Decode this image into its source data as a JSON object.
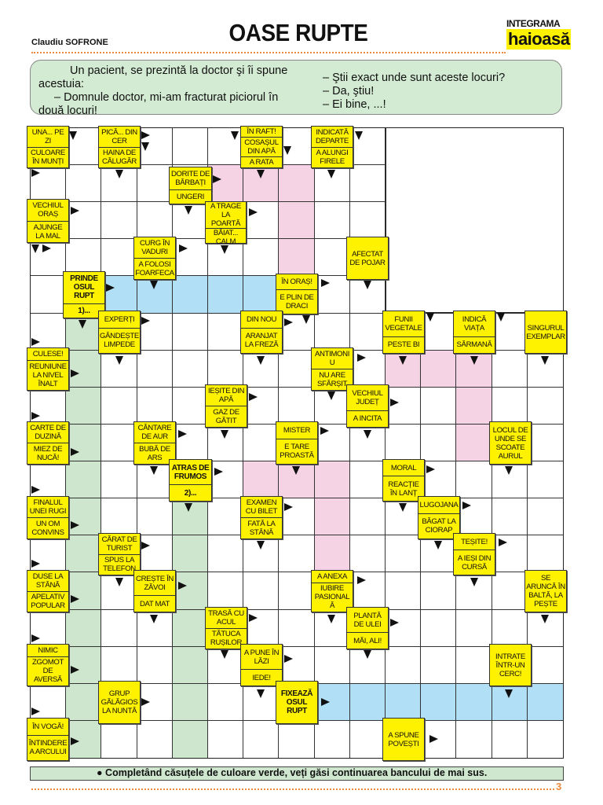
{
  "header": {
    "author": "Claudiu SOFRONE",
    "title": "OASE RUPTE",
    "logo_line1": "INTEGRAMA",
    "logo_line2": "haioasă"
  },
  "joke": {
    "left": [
      "Un pacient, se prezintă la doctor şi îi spune acestuia:",
      "– Domnule doctor, mi-am fracturat piciorul în două locuri!"
    ],
    "right": [
      "– Ştii exact unde sunt aceste locuri?",
      "– Da, ştiu!",
      "– Ei bine, ...!"
    ]
  },
  "colors": {
    "clue_yellow": "#fff200",
    "pink": "#f6d3e4",
    "blue": "#b1dff5",
    "green": "#cde6cd",
    "accent_orange": "#f08a3c"
  },
  "clues": [
    {
      "parts": [
        "UNA... PE ZI",
        "CULOARE ÎN MUNȚI"
      ]
    },
    {
      "parts": [
        "PICĂ... DIN CER",
        "HAINA DE CĂLUGĂR"
      ]
    },
    {
      "parts": [
        "DORITE DE BĂRBAȚI",
        "UNGERI"
      ]
    },
    {
      "parts": [
        "ÎN RAFT!",
        "COSAȘUL DIN APĂ",
        "A RATA"
      ]
    },
    {
      "parts": [
        "INDICATĂ DEPARTE",
        "A ALUNGI FIRELE"
      ]
    },
    {
      "parts": [
        "VECHIUL ORAȘ",
        "AJUNGE LA MAL"
      ]
    },
    {
      "parts": [
        "A TRAGE LA POARTĂ",
        "BĂIAT... CALM"
      ]
    },
    {
      "parts": [
        "CURG ÎN VADURI",
        "A FOLOSI FOARFECA"
      ]
    },
    {
      "parts": [
        "AFECTAT DE POJAR"
      ]
    },
    {
      "parts": [
        "PRINDE OSUL RUPT",
        "1)..."
      ]
    },
    {
      "parts": [
        "ÎN ORAȘ!",
        "E PLIN DE DRACI"
      ]
    },
    {
      "parts": [
        "EXPERȚI",
        "GÂNDEȘTE LIMPEDE"
      ]
    },
    {
      "parts": [
        "DIN NOU",
        "ARANJAT LA FREZĂ"
      ]
    },
    {
      "parts": [
        "FUNII VEGETALE",
        "PESTE BI"
      ]
    },
    {
      "parts": [
        "INDICĂ VIAȚA",
        "SĂRMANĂ"
      ]
    },
    {
      "parts": [
        "SINGURUL EXEMPLAR"
      ]
    },
    {
      "parts": [
        "CULESE!",
        "REUNIUNE LA NIVEL ÎNALT"
      ]
    },
    {
      "parts": [
        "ANTIMONIU",
        "NU ARE SFÂRȘIT"
      ]
    },
    {
      "parts": [
        "IEȘITE DIN APĂ",
        "GAZ DE GĂTIT"
      ]
    },
    {
      "parts": [
        "VECHIUL JUDEȚ",
        "A INCITA"
      ]
    },
    {
      "parts": [
        "CARTE DE DUZINĂ",
        "MIEZ DE NUCĂ!"
      ]
    },
    {
      "parts": [
        "CÂNTARE DE AUR",
        "BUBĂ DE ARS"
      ]
    },
    {
      "parts": [
        "MISTER",
        "E TARE PROASTĂ"
      ]
    },
    {
      "parts": [
        "LOCUL DE UNDE SE SCOATE AURUL"
      ]
    },
    {
      "parts": [
        "ATRAS DE FRUMOS",
        "2)..."
      ]
    },
    {
      "parts": [
        "MORAL",
        "REACȚIE ÎN LANȚ"
      ]
    },
    {
      "parts": [
        "FINALUL UNEI RUGI",
        "UN OM CONVINS"
      ]
    },
    {
      "parts": [
        "EXAMEN CU BILET",
        "FATĂ LA STÂNĂ"
      ]
    },
    {
      "parts": [
        "LUGOJANA",
        "BĂGAT LA CIORAP"
      ]
    },
    {
      "parts": [
        "CĂRAT DE TURIST",
        "SPUS LA TELEFON"
      ]
    },
    {
      "parts": [
        "TEȘITE!",
        "A IEȘI DIN CURSĂ"
      ]
    },
    {
      "parts": [
        "DUSE LA STÂNĂ",
        "APELATIV POPULAR"
      ]
    },
    {
      "parts": [
        "CREȘTE ÎN ZĂVOI",
        "DAT MAT"
      ]
    },
    {
      "parts": [
        "A ANEXA",
        "IUBIRE PASIONALĂ"
      ]
    },
    {
      "parts": [
        "SE ARUNCĂ ÎN BALTĂ, LA PEȘTE"
      ]
    },
    {
      "parts": [
        "TRASĂ CU ACUL",
        "TĂTUCA RUȘILOR"
      ]
    },
    {
      "parts": [
        "PLANTĂ DE ULEI",
        "MĂI, ALI!"
      ]
    },
    {
      "parts": [
        "NIMIC",
        "ZGOMOT DE AVERSĂ"
      ]
    },
    {
      "parts": [
        "A PUNE ÎN LĂZI",
        "IEDE!"
      ]
    },
    {
      "parts": [
        "INTRATE ÎNTR-UN CERC!"
      ]
    },
    {
      "parts": [
        "GRUP GĂLĂGIOS LA NUNTĂ"
      ]
    },
    {
      "parts": [
        "FIXEAZĂ OSUL RUPT"
      ]
    },
    {
      "parts": [
        "ÎN VOGĂ!",
        "ÎNTINDEREA ARCULUI"
      ]
    },
    {
      "parts": [
        "A SPUNE POVEȘTI"
      ]
    }
  ],
  "footer": {
    "bullet": "●",
    "text": "Completând căsuțele de culoare verde, veți găsi continuarea bancului de mai sus.",
    "page_number": "3"
  }
}
